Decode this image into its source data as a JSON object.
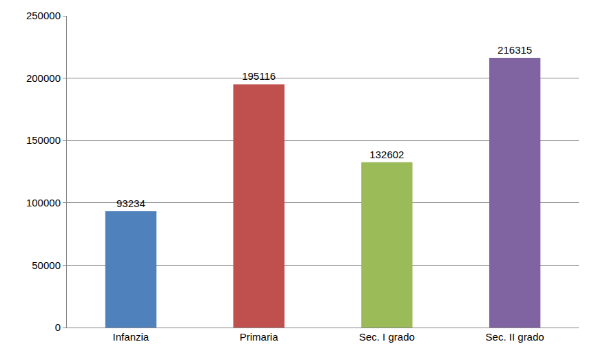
{
  "chart_data": {
    "type": "bar",
    "categories": [
      "Infanzia",
      "Primaria",
      "Sec. I grado",
      "Sec. II grado"
    ],
    "values": [
      93234,
      195116,
      132602,
      216315
    ],
    "colors": [
      "#4f81bd",
      "#c0504d",
      "#9bbb59",
      "#8064a2"
    ],
    "ylim": [
      0,
      250000
    ],
    "yticks": [
      0,
      50000,
      100000,
      150000,
      200000,
      250000
    ],
    "grid": true,
    "data_labels": true
  }
}
